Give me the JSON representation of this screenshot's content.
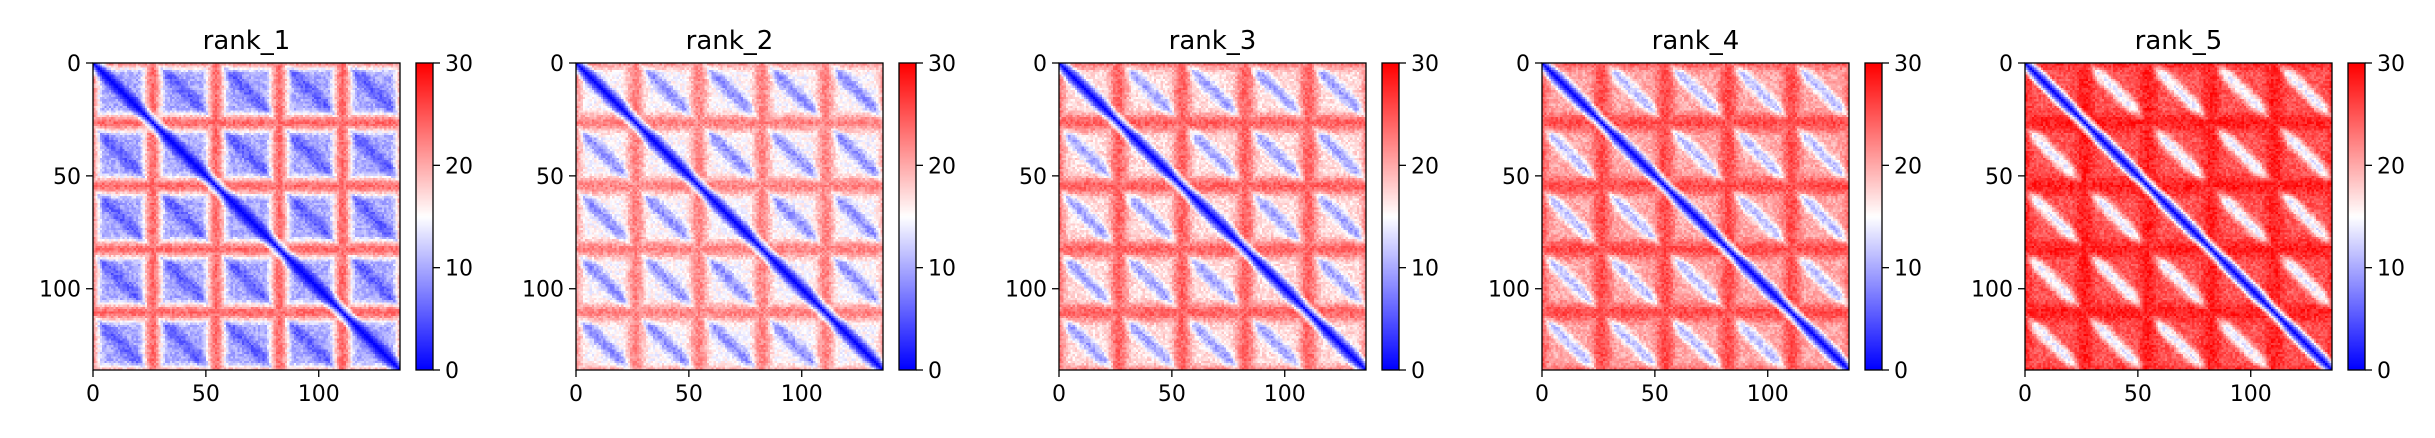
{
  "colormap": {
    "name": "bwr",
    "low_color": "#0000ff",
    "mid_color": "#ffffff",
    "high_color": "#ff0000",
    "vmin": 0,
    "vmax": 30,
    "ticks": [
      "0",
      "10",
      "20",
      "30"
    ]
  },
  "chart_data": [
    {
      "type": "heatmap",
      "title": "rank_1",
      "n": 136,
      "xlim": [
        0,
        136
      ],
      "ylim": [
        136,
        0
      ],
      "x_ticks": [
        "0",
        "50",
        "100"
      ],
      "y_ticks": [
        "0",
        "50",
        "100"
      ],
      "background_level": 10,
      "peak_level": 27,
      "repeat_period": 28,
      "diagonal_value": 0,
      "colorbar_ticks": [
        "0",
        "10",
        "20",
        "30"
      ]
    },
    {
      "type": "heatmap",
      "title": "rank_2",
      "n": 136,
      "xlim": [
        0,
        136
      ],
      "ylim": [
        136,
        0
      ],
      "x_ticks": [
        "0",
        "50",
        "100"
      ],
      "y_ticks": [
        "0",
        "50",
        "100"
      ],
      "background_level": 15,
      "peak_level": 24,
      "repeat_period": 28,
      "diagonal_value": 0,
      "colorbar_ticks": [
        "0",
        "10",
        "20",
        "30"
      ]
    },
    {
      "type": "heatmap",
      "title": "rank_3",
      "n": 136,
      "xlim": [
        0,
        136
      ],
      "ylim": [
        136,
        0
      ],
      "x_ticks": [
        "0",
        "50",
        "100"
      ],
      "y_ticks": [
        "0",
        "50",
        "100"
      ],
      "background_level": 17,
      "peak_level": 26,
      "repeat_period": 28,
      "diagonal_value": 0,
      "colorbar_ticks": [
        "0",
        "10",
        "20",
        "30"
      ]
    },
    {
      "type": "heatmap",
      "title": "rank_4",
      "n": 136,
      "xlim": [
        0,
        136
      ],
      "ylim": [
        136,
        0
      ],
      "x_ticks": [
        "0",
        "50",
        "100"
      ],
      "y_ticks": [
        "0",
        "50",
        "100"
      ],
      "background_level": 20,
      "peak_level": 27,
      "repeat_period": 28,
      "diagonal_value": 0,
      "colorbar_ticks": [
        "0",
        "10",
        "20",
        "30"
      ]
    },
    {
      "type": "heatmap",
      "title": "rank_5",
      "n": 136,
      "xlim": [
        0,
        136
      ],
      "ylim": [
        136,
        0
      ],
      "x_ticks": [
        "0",
        "50",
        "100"
      ],
      "y_ticks": [
        "0",
        "50",
        "100"
      ],
      "background_level": 25,
      "peak_level": 29,
      "repeat_period": 28,
      "diagonal_value": 0,
      "colorbar_ticks": [
        "0",
        "10",
        "20",
        "30"
      ]
    }
  ]
}
